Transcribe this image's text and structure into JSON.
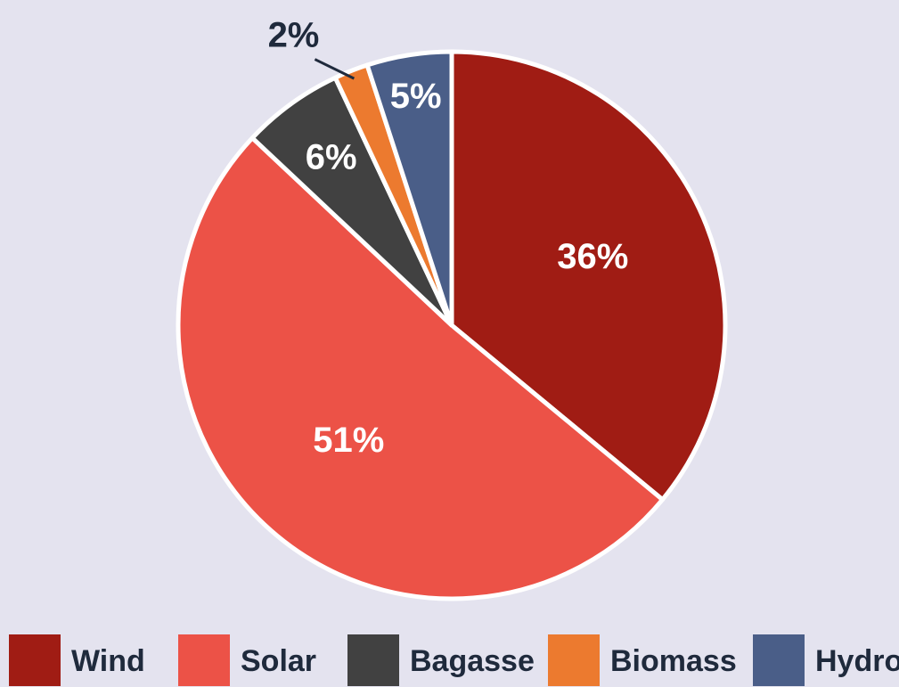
{
  "chart_data": {
    "type": "pie",
    "categories": [
      "Wind",
      "Solar",
      "Bagasse",
      "Biomass",
      "Hydro"
    ],
    "values": [
      36,
      51,
      6,
      2,
      5
    ],
    "value_labels": [
      "36%",
      "51%",
      "6%",
      "2%",
      "5%"
    ],
    "colors": [
      "#a01c14",
      "#ec5247",
      "#414141",
      "#ec7a2f",
      "#4a5e88"
    ]
  }
}
